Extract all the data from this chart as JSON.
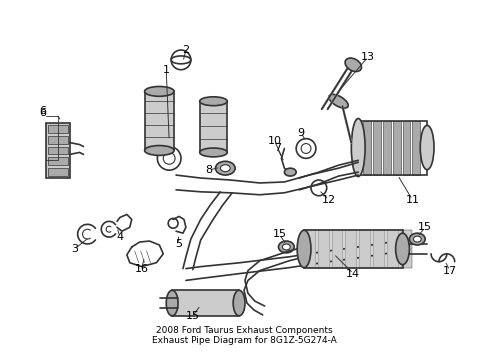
{
  "title": "2008 Ford Taurus Exhaust Components\nExhaust Pipe Diagram for 8G1Z-5G274-A",
  "bg_color": "#ffffff",
  "line_color": "#333333",
  "text_color": "#000000",
  "title_fontsize": 6.5,
  "label_fontsize": 8,
  "figsize": [
    4.89,
    3.6
  ],
  "dpi": 100,
  "note": "Technical parts diagram - exhaust components"
}
